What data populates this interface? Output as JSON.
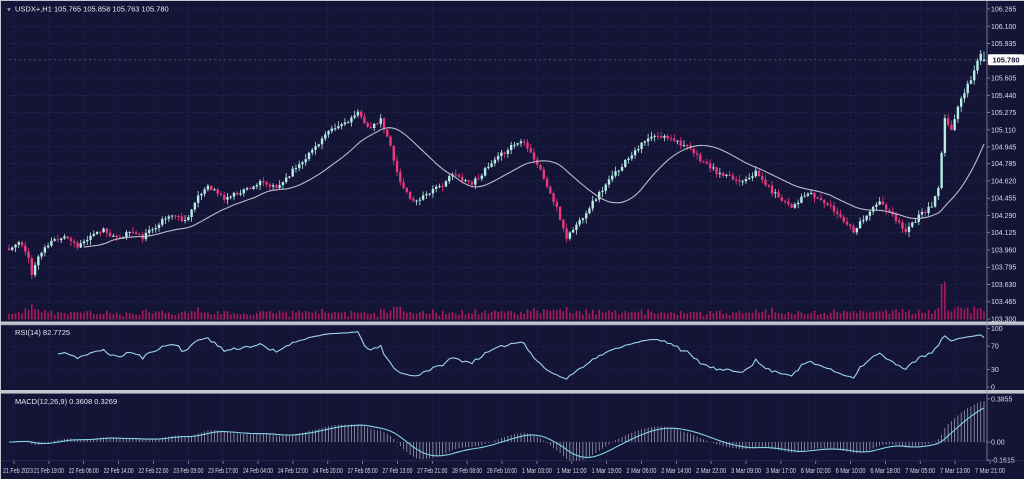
{
  "window": {
    "title": "USDX+,H1 105.765 105.858 105.763 105.780",
    "symbol": "USDX+",
    "timeframe": "H1"
  },
  "panes": {
    "rsi_label": "RSI(14) 82.7725",
    "macd_label": "MACD(12,26,9) 0.3608 0.3269"
  },
  "axes": {
    "current_price": "105.780",
    "price_ticks": [
      "106.265",
      "106.100",
      "105.935",
      "105.770",
      "105.605",
      "105.440",
      "105.275",
      "105.110",
      "104.945",
      "104.785",
      "104.620",
      "104.455",
      "104.290",
      "104.125",
      "103.960",
      "103.795",
      "103.630",
      "103.465",
      "103.300"
    ],
    "rsi_ticks": [
      {
        "v": 100,
        "label": "100"
      },
      {
        "v": 70,
        "label": "70"
      },
      {
        "v": 30,
        "label": "30"
      },
      {
        "v": 0,
        "label": "0"
      }
    ],
    "macd_ticks": [
      {
        "v": 0.3855,
        "label": "0.3855"
      },
      {
        "v": 0,
        "label": "0.00"
      },
      {
        "v": -0.1615,
        "label": "-0.1615"
      }
    ],
    "time_labels": [
      "21 Feb 2023",
      "21 Feb 19:00",
      "22 Feb 06:00",
      "22 Feb 14:00",
      "22 Feb 22:00",
      "23 Feb 09:00",
      "23 Feb 17:00",
      "24 Feb 04:00",
      "24 Feb 12:00",
      "24 Feb 20:00",
      "27 Feb 05:00",
      "27 Feb 13:00",
      "27 Feb 21:00",
      "28 Feb 08:00",
      "28 Feb 16:00",
      "1 Mar 03:00",
      "1 Mar 11:00",
      "1 Mar 19:00",
      "2 Mar 06:00",
      "2 Mar 14:00",
      "2 Mar 22:00",
      "3 Mar 09:00",
      "3 Mar 17:00",
      "6 Mar 02:00",
      "6 Mar 10:00",
      "6 Mar 18:00",
      "7 Mar 05:00",
      "7 Mar 13:00",
      "7 Mar 21:00"
    ]
  },
  "colors": {
    "background": "#141437",
    "grid": "#35355e",
    "bull_candle": "#b7ebe4",
    "bear_candle": "#ea3a7d",
    "ma_line": "#b9bbc9",
    "rsi_line": "#9fd4ea",
    "macd_signal_line": "#82d4e6",
    "macd_histogram": "#c6c8d6",
    "volume_bar": "#aa1a5a",
    "separator": "#c6c6d2",
    "axis_line": "#8f8fa8",
    "badge_bg": "#ffffff",
    "current_price_line": "rgba(255,255,255,0.3)"
  },
  "chart_data": {
    "type": "candlestick",
    "symbol": "USDX+",
    "timeframe": "H1",
    "title": "USDX+,H1 105.765 105.858 105.763 105.780",
    "candle_count": 300,
    "ylim": [
      103.3,
      106.265
    ],
    "rsi_ylim": [
      0,
      100
    ],
    "macd_ylim": [
      -0.1615,
      0.3855
    ],
    "last_candle": {
      "open": 105.765,
      "high": 105.858,
      "low": 105.763,
      "close": 105.78
    },
    "price_anchors": [
      [
        0,
        103.96
      ],
      [
        3,
        104.03
      ],
      [
        6,
        103.9
      ],
      [
        7,
        103.72
      ],
      [
        9,
        103.9
      ],
      [
        13,
        104.04
      ],
      [
        17,
        104.1
      ],
      [
        21,
        104.0
      ],
      [
        25,
        104.08
      ],
      [
        29,
        104.16
      ],
      [
        33,
        104.06
      ],
      [
        37,
        104.14
      ],
      [
        41,
        104.08
      ],
      [
        46,
        104.22
      ],
      [
        50,
        104.3
      ],
      [
        54,
        104.24
      ],
      [
        58,
        104.46
      ],
      [
        61,
        104.58
      ],
      [
        66,
        104.45
      ],
      [
        71,
        104.52
      ],
      [
        77,
        104.6
      ],
      [
        82,
        104.55
      ],
      [
        87,
        104.72
      ],
      [
        92,
        104.88
      ],
      [
        97,
        105.06
      ],
      [
        102,
        105.16
      ],
      [
        107,
        105.26
      ],
      [
        111,
        105.12
      ],
      [
        114,
        105.2
      ],
      [
        117,
        104.95
      ],
      [
        120,
        104.6
      ],
      [
        124,
        104.42
      ],
      [
        128,
        104.5
      ],
      [
        132,
        104.56
      ],
      [
        136,
        104.68
      ],
      [
        142,
        104.6
      ],
      [
        148,
        104.78
      ],
      [
        154,
        104.96
      ],
      [
        158,
        105.01
      ],
      [
        163,
        104.72
      ],
      [
        168,
        104.35
      ],
      [
        171,
        104.08
      ],
      [
        175,
        104.24
      ],
      [
        180,
        104.46
      ],
      [
        186,
        104.7
      ],
      [
        192,
        104.92
      ],
      [
        197,
        105.04
      ],
      [
        203,
        105.04
      ],
      [
        208,
        104.94
      ],
      [
        213,
        104.8
      ],
      [
        218,
        104.68
      ],
      [
        224,
        104.62
      ],
      [
        229,
        104.7
      ],
      [
        234,
        104.52
      ],
      [
        240,
        104.38
      ],
      [
        245,
        104.5
      ],
      [
        250,
        104.42
      ],
      [
        255,
        104.28
      ],
      [
        259,
        104.15
      ],
      [
        263,
        104.3
      ],
      [
        267,
        104.42
      ],
      [
        271,
        104.28
      ],
      [
        275,
        104.15
      ],
      [
        279,
        104.28
      ],
      [
        283,
        104.38
      ],
      [
        285,
        104.55
      ],
      [
        287,
        105.2
      ],
      [
        289,
        105.12
      ],
      [
        291,
        105.32
      ],
      [
        293,
        105.48
      ],
      [
        295,
        105.6
      ],
      [
        297,
        105.76
      ],
      [
        298,
        105.84
      ],
      [
        299,
        105.78
      ]
    ],
    "indicators": {
      "moving_average": {
        "type": "SMA",
        "period": 24
      },
      "rsi": {
        "period": 14,
        "current_value": 82.7725,
        "levels": [
          70,
          30
        ]
      },
      "macd": {
        "fast": 12,
        "slow": 26,
        "signal": 9,
        "macd_value": 0.3608,
        "signal_value": 0.3269
      }
    },
    "legend_position": "top-left",
    "grid": true
  }
}
